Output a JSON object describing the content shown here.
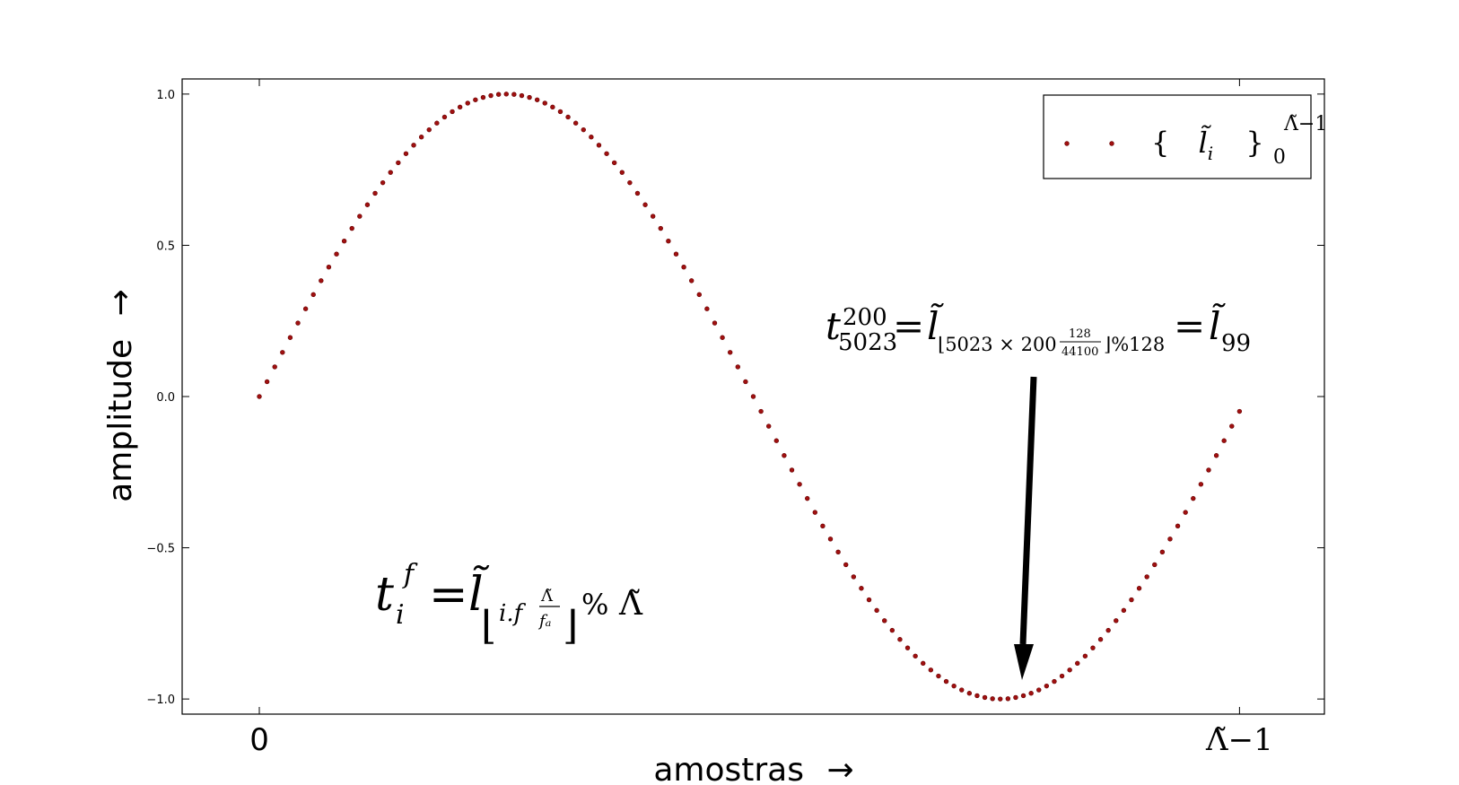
{
  "chart_data": {
    "type": "scatter",
    "xlabel": "amostras",
    "ylabel": "amplitude",
    "axis_arrow": "→",
    "xlim": [
      -10,
      138
    ],
    "ylim": [
      -1.05,
      1.05
    ],
    "x_ticks": [
      "0",
      "Λ̃−1"
    ],
    "x_tick_values": [
      0,
      127
    ],
    "y_ticks": [
      "1.0",
      "0.5",
      "0.0",
      "−0.5",
      "−1.0"
    ],
    "y_tick_values": [
      1.0,
      0.5,
      0.0,
      -0.5,
      -1.0
    ],
    "series": [
      {
        "name": "{ l̃ᵢ }₀^(Λ̃−1)",
        "color": "#a01010",
        "n_points": 128,
        "function": "sin(2*pi*i/128)",
        "x": [
          0,
          1,
          2,
          3,
          4,
          5,
          6,
          7,
          8,
          9,
          10,
          11,
          12,
          13,
          14,
          15,
          16,
          17,
          18,
          19,
          20,
          21,
          22,
          23,
          24,
          25,
          26,
          27,
          28,
          29,
          30,
          31,
          32,
          33,
          34,
          35,
          36,
          37,
          38,
          39,
          40,
          41,
          42,
          43,
          44,
          45,
          46,
          47,
          48,
          49,
          50,
          51,
          52,
          53,
          54,
          55,
          56,
          57,
          58,
          59,
          60,
          61,
          62,
          63,
          64,
          65,
          66,
          67,
          68,
          69,
          70,
          71,
          72,
          73,
          74,
          75,
          76,
          77,
          78,
          79,
          80,
          81,
          82,
          83,
          84,
          85,
          86,
          87,
          88,
          89,
          90,
          91,
          92,
          93,
          94,
          95,
          96,
          97,
          98,
          99,
          100,
          101,
          102,
          103,
          104,
          105,
          106,
          107,
          108,
          109,
          110,
          111,
          112,
          113,
          114,
          115,
          116,
          117,
          118,
          119,
          120,
          121,
          122,
          123,
          124,
          125,
          126,
          127
        ],
        "y": [
          0.0,
          0.049,
          0.098,
          0.146,
          0.195,
          0.243,
          0.29,
          0.337,
          0.383,
          0.428,
          0.471,
          0.514,
          0.556,
          0.596,
          0.634,
          0.672,
          0.707,
          0.741,
          0.773,
          0.803,
          0.831,
          0.858,
          0.882,
          0.904,
          0.924,
          0.942,
          0.957,
          0.97,
          0.981,
          0.989,
          0.995,
          0.999,
          1.0,
          0.999,
          0.995,
          0.989,
          0.981,
          0.97,
          0.957,
          0.942,
          0.924,
          0.904,
          0.882,
          0.858,
          0.831,
          0.803,
          0.773,
          0.741,
          0.707,
          0.672,
          0.634,
          0.596,
          0.556,
          0.514,
          0.471,
          0.428,
          0.383,
          0.337,
          0.29,
          0.243,
          0.195,
          0.146,
          0.098,
          0.049,
          0.0,
          -0.049,
          -0.098,
          -0.146,
          -0.195,
          -0.243,
          -0.29,
          -0.337,
          -0.383,
          -0.428,
          -0.471,
          -0.514,
          -0.556,
          -0.596,
          -0.634,
          -0.672,
          -0.707,
          -0.741,
          -0.773,
          -0.803,
          -0.831,
          -0.858,
          -0.882,
          -0.904,
          -0.924,
          -0.942,
          -0.957,
          -0.97,
          -0.981,
          -0.989,
          -0.995,
          -0.999,
          -1.0,
          -0.999,
          -0.995,
          -0.989,
          -0.981,
          -0.97,
          -0.957,
          -0.942,
          -0.924,
          -0.904,
          -0.882,
          -0.858,
          -0.831,
          -0.803,
          -0.773,
          -0.741,
          -0.707,
          -0.672,
          -0.634,
          -0.596,
          -0.556,
          -0.514,
          -0.471,
          -0.428,
          -0.383,
          -0.337,
          -0.29,
          -0.243,
          -0.195,
          -0.146,
          -0.098,
          -0.049
        ]
      }
    ],
    "legend_position": "top-right",
    "annotations": [
      {
        "name": "general-formula",
        "lhs": "t",
        "lhs_sup": "f",
        "lhs_sub": "i",
        "eq": "=",
        "l_tilde": "l̃",
        "floor_open": "⌊",
        "floor_content_a": "i.f",
        "frac_num": "Λ̃",
        "frac_den": "fₐ",
        "floor_close": "⌋",
        "mod": "%",
        "lambda": "Λ̃"
      },
      {
        "name": "specific-example",
        "lhs": "t",
        "lhs_sup": "200",
        "lhs_sub": "5023",
        "eq": "=",
        "l_tilde": "l̃",
        "sub_open": "⌊5023 × 200",
        "frac_num": "128",
        "frac_den": "44100",
        "sub_close": "⌋%128",
        "eq2": "=",
        "l_tilde2": "l̃",
        "result_sub": "99",
        "arrow_target_x": 99
      }
    ]
  }
}
